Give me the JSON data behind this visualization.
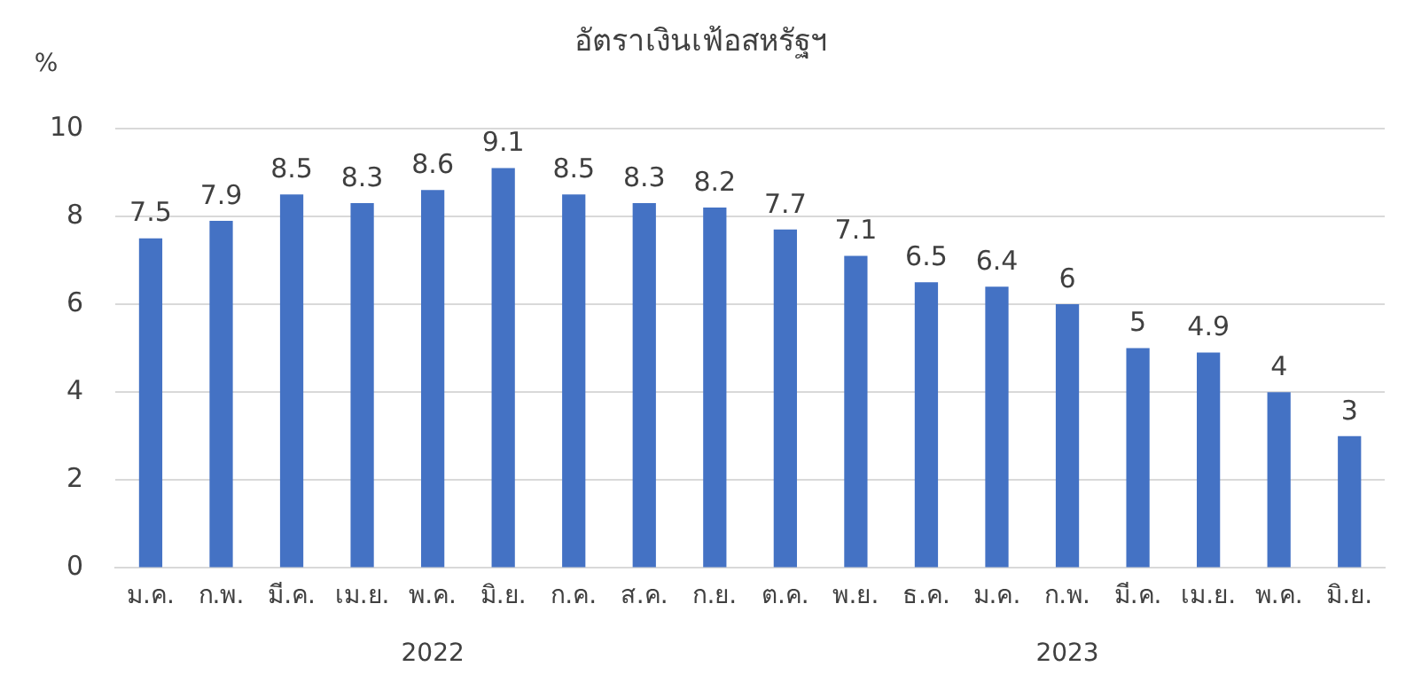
{
  "chart_data": {
    "type": "bar",
    "title": "อัตราเงินเฟ้อสหรัฐฯ",
    "ylabel": "%",
    "categories": [
      "ม.ค.",
      "ก.พ.",
      "มี.ค.",
      "เม.ย.",
      "พ.ค.",
      "มิ.ย.",
      "ก.ค.",
      "ส.ค.",
      "ก.ย.",
      "ต.ค.",
      "พ.ย.",
      "ธ.ค.",
      "ม.ค.",
      "ก.พ.",
      "มี.ค.",
      "เม.ย.",
      "พ.ค.",
      "มิ.ย."
    ],
    "values": [
      7.5,
      7.9,
      8.5,
      8.3,
      8.6,
      9.1,
      8.5,
      8.3,
      8.2,
      7.7,
      7.1,
      6.5,
      6.4,
      6,
      5,
      4.9,
      4,
      3
    ],
    "color": "#4472c4",
    "ylim": [
      0,
      10
    ],
    "yticks": [
      0,
      2,
      4,
      6,
      8,
      10
    ],
    "grid": "y",
    "data_labels": true,
    "annotations": [
      "2022",
      "2023"
    ]
  }
}
